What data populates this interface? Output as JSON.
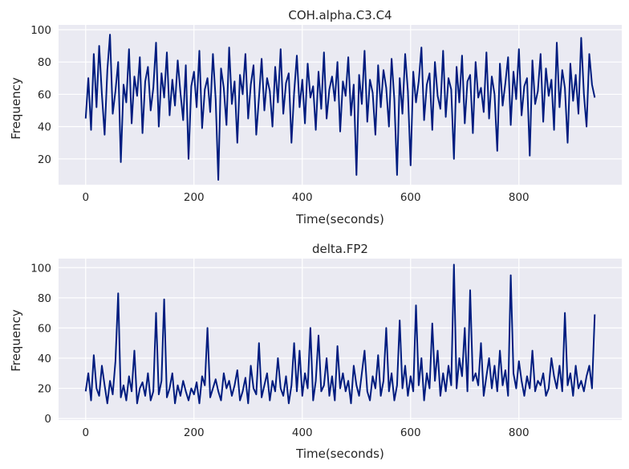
{
  "chart_data": [
    {
      "type": "line",
      "title": "COH.alpha.C3.C4",
      "xlabel": "Time(seconds)",
      "ylabel": "Frequency",
      "xlim": [
        -50,
        990
      ],
      "ylim": [
        4,
        103
      ],
      "xticks": [
        0,
        200,
        400,
        600,
        800
      ],
      "yticks": [
        20,
        40,
        60,
        80,
        100
      ],
      "grid": true,
      "color": "#001c7f",
      "series": [
        {
          "x": [
            0,
            5,
            10,
            15,
            20,
            25,
            30,
            35,
            40,
            45,
            50,
            55,
            60,
            65,
            70,
            75,
            80,
            85,
            90,
            95,
            100,
            105,
            110,
            115,
            120,
            125,
            130,
            135,
            140,
            145,
            150,
            155,
            160,
            165,
            170,
            175,
            180,
            185,
            190,
            195,
            200,
            205,
            210,
            215,
            220,
            225,
            230,
            235,
            240,
            245,
            250,
            255,
            260,
            265,
            270,
            275,
            280,
            285,
            290,
            295,
            300,
            305,
            310,
            315,
            320,
            325,
            330,
            335,
            340,
            345,
            350,
            355,
            360,
            365,
            370,
            375,
            380,
            385,
            390,
            395,
            400,
            405,
            410,
            415,
            420,
            425,
            430,
            435,
            440,
            445,
            450,
            455,
            460,
            465,
            470,
            475,
            480,
            485,
            490,
            495,
            500,
            505,
            510,
            515,
            520,
            525,
            530,
            535,
            540,
            545,
            550,
            555,
            560,
            565,
            570,
            575,
            580,
            585,
            590,
            595,
            600,
            605,
            610,
            615,
            620,
            625,
            630,
            635,
            640,
            645,
            650,
            655,
            660,
            665,
            670,
            675,
            680,
            685,
            690,
            695,
            700,
            705,
            710,
            715,
            720,
            725,
            730,
            735,
            740,
            745,
            750,
            755,
            760,
            765,
            770,
            775,
            780,
            785,
            790,
            795,
            800,
            805,
            810,
            815,
            820,
            825,
            830,
            835,
            840,
            845,
            850,
            855,
            860,
            865,
            870,
            875,
            880,
            885,
            890,
            895,
            900,
            905,
            910,
            915,
            920,
            925,
            930,
            935,
            940
          ],
          "values": [
            45,
            70,
            38,
            85,
            52,
            90,
            60,
            35,
            75,
            97,
            48,
            62,
            80,
            18,
            66,
            55,
            88,
            42,
            71,
            59,
            83,
            36,
            68,
            77,
            50,
            64,
            92,
            40,
            73,
            58,
            86,
            47,
            69,
            53,
            81,
            61,
            44,
            78,
            20,
            65,
            74,
            52,
            87,
            39,
            63,
            70,
            49,
            85,
            57,
            7,
            76,
            64,
            41,
            89,
            54,
            68,
            30,
            72,
            60,
            85,
            45,
            66,
            78,
            35,
            58,
            82,
            50,
            70,
            62,
            40,
            77,
            55,
            88,
            48,
            67,
            73,
            30,
            61,
            84,
            52,
            69,
            42,
            79,
            58,
            65,
            38,
            74,
            51,
            86,
            45,
            63,
            71,
            56,
            80,
            37,
            68,
            59,
            83,
            47,
            66,
            10,
            72,
            54,
            87,
            43,
            69,
            61,
            35,
            78,
            52,
            75,
            64,
            40,
            82,
            57,
            10,
            70,
            48,
            85,
            62,
            16,
            74,
            55,
            68,
            89,
            44,
            66,
            73,
            38,
            80,
            59,
            51,
            87,
            46,
            70,
            63,
            20,
            77,
            55,
            84,
            42,
            68,
            72,
            36,
            80,
            58,
            64,
            49,
            86,
            45,
            71,
            60,
            25,
            79,
            53,
            67,
            83,
            41,
            74,
            57,
            88,
            47,
            65,
            70,
            22,
            81,
            54,
            62,
            85,
            43,
            76,
            59,
            69,
            38,
            92,
            52,
            75,
            64,
            30,
            79,
            56,
            72,
            48,
            95,
            60,
            40,
            85,
            66,
            58
          ]
        }
      ]
    },
    {
      "type": "line",
      "title": "delta.FP2",
      "xlabel": "Time(seconds)",
      "ylabel": "Frequency",
      "xlim": [
        -50,
        990
      ],
      "ylim": [
        -1,
        106
      ],
      "xticks": [
        0,
        200,
        400,
        600,
        800
      ],
      "yticks": [
        0,
        20,
        40,
        60,
        80,
        100
      ],
      "grid": true,
      "color": "#001c7f",
      "series": [
        {
          "x": [
            0,
            5,
            10,
            15,
            20,
            25,
            30,
            35,
            40,
            45,
            50,
            55,
            60,
            65,
            70,
            75,
            80,
            85,
            90,
            95,
            100,
            105,
            110,
            115,
            120,
            125,
            130,
            135,
            140,
            145,
            150,
            155,
            160,
            165,
            170,
            175,
            180,
            185,
            190,
            195,
            200,
            205,
            210,
            215,
            220,
            225,
            230,
            235,
            240,
            245,
            250,
            255,
            260,
            265,
            270,
            275,
            280,
            285,
            290,
            295,
            300,
            305,
            310,
            315,
            320,
            325,
            330,
            335,
            340,
            345,
            350,
            355,
            360,
            365,
            370,
            375,
            380,
            385,
            390,
            395,
            400,
            405,
            410,
            415,
            420,
            425,
            430,
            435,
            440,
            445,
            450,
            455,
            460,
            465,
            470,
            475,
            480,
            485,
            490,
            495,
            500,
            505,
            510,
            515,
            520,
            525,
            530,
            535,
            540,
            545,
            550,
            555,
            560,
            565,
            570,
            575,
            580,
            585,
            590,
            595,
            600,
            605,
            610,
            615,
            620,
            625,
            630,
            635,
            640,
            645,
            650,
            655,
            660,
            665,
            670,
            675,
            680,
            685,
            690,
            695,
            700,
            705,
            710,
            715,
            720,
            725,
            730,
            735,
            740,
            745,
            750,
            755,
            760,
            765,
            770,
            775,
            780,
            785,
            790,
            795,
            800,
            805,
            810,
            815,
            820,
            825,
            830,
            835,
            840,
            845,
            850,
            855,
            860,
            865,
            870,
            875,
            880,
            885,
            890,
            895,
            900,
            905,
            910,
            915,
            920,
            925,
            930,
            935,
            940
          ],
          "values": [
            18,
            30,
            12,
            42,
            20,
            15,
            35,
            22,
            10,
            25,
            16,
            38,
            83,
            14,
            22,
            12,
            28,
            18,
            45,
            10,
            20,
            24,
            15,
            30,
            12,
            18,
            70,
            16,
            25,
            79,
            14,
            20,
            30,
            10,
            22,
            15,
            25,
            18,
            12,
            20,
            16,
            24,
            10,
            28,
            22,
            60,
            14,
            20,
            26,
            18,
            12,
            30,
            20,
            25,
            15,
            22,
            32,
            12,
            18,
            27,
            10,
            35,
            20,
            16,
            50,
            14,
            22,
            30,
            12,
            25,
            18,
            40,
            20,
            15,
            28,
            10,
            22,
            50,
            18,
            45,
            15,
            30,
            20,
            60,
            12,
            25,
            55,
            18,
            22,
            40,
            15,
            28,
            12,
            48,
            20,
            30,
            18,
            25,
            10,
            35,
            22,
            15,
            30,
            45,
            18,
            12,
            28,
            20,
            42,
            15,
            25,
            60,
            18,
            30,
            12,
            22,
            65,
            20,
            35,
            15,
            28,
            18,
            75,
            22,
            40,
            12,
            30,
            20,
            63,
            25,
            45,
            15,
            30,
            18,
            35,
            22,
            102,
            20,
            40,
            28,
            60,
            18,
            85,
            25,
            30,
            22,
            50,
            15,
            28,
            40,
            20,
            35,
            18,
            45,
            22,
            32,
            15,
            95,
            30,
            20,
            38,
            25,
            15,
            28,
            20,
            45,
            18,
            25,
            22,
            30,
            15,
            20,
            40,
            28,
            20,
            35,
            18,
            70,
            22,
            30,
            15,
            35,
            20,
            25,
            18,
            28,
            35,
            20,
            69
          ]
        }
      ]
    }
  ]
}
